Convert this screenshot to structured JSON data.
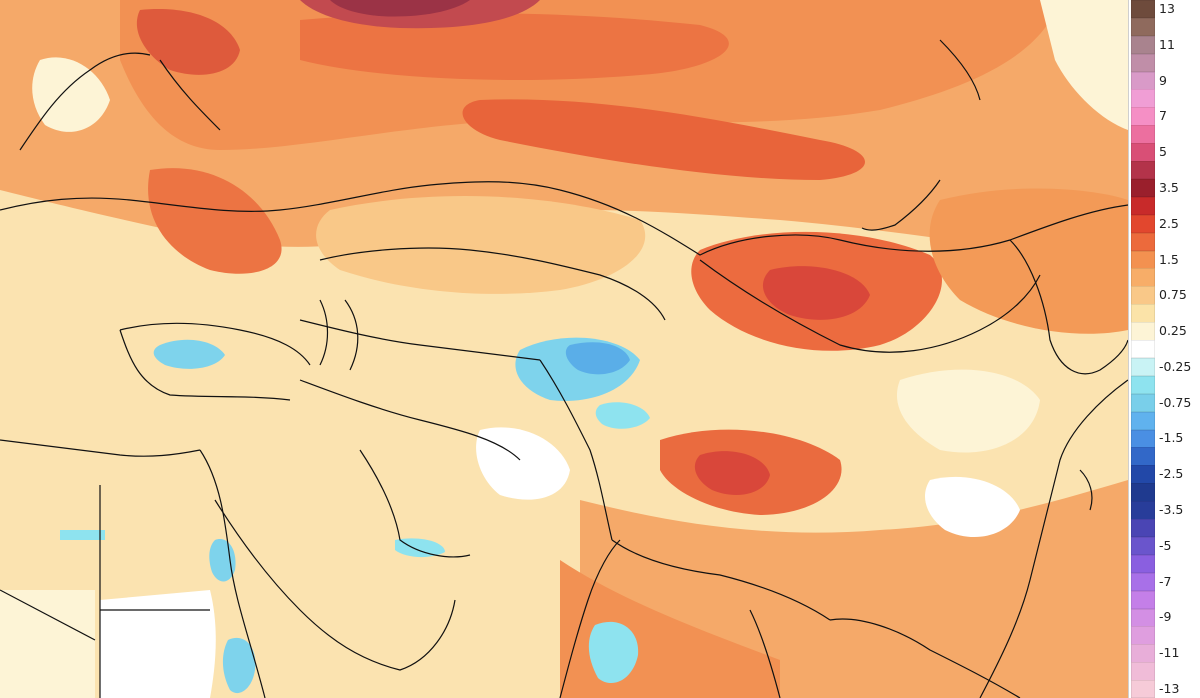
{
  "legend": {
    "entries": [
      {
        "label": "13",
        "color": "#6e4b3c"
      },
      {
        "label": "",
        "color": "#8f6a5d"
      },
      {
        "label": "11",
        "color": "#a9838e"
      },
      {
        "label": "",
        "color": "#c08ea8"
      },
      {
        "label": "9",
        "color": "#d99ac8"
      },
      {
        "label": "",
        "color": "#f09ed5"
      },
      {
        "label": "7",
        "color": "#f58fc5"
      },
      {
        "label": "",
        "color": "#ec6f9f"
      },
      {
        "label": "5",
        "color": "#d94f76"
      },
      {
        "label": "",
        "color": "#b3334a"
      },
      {
        "label": "3.5",
        "color": "#9a1f2c"
      },
      {
        "label": "",
        "color": "#c82a2a"
      },
      {
        "label": "2.5",
        "color": "#e2472e"
      },
      {
        "label": "",
        "color": "#ec6a3c"
      },
      {
        "label": "1.5",
        "color": "#f39150"
      },
      {
        "label": "",
        "color": "#f7ad68"
      },
      {
        "label": "0.75",
        "color": "#f9c888"
      },
      {
        "label": "",
        "color": "#fbe3a8"
      },
      {
        "label": "0.25",
        "color": "#fdf4d6"
      },
      {
        "label": "",
        "color": "#ffffff"
      },
      {
        "label": "-0.25",
        "color": "#c9f3f5"
      },
      {
        "label": "",
        "color": "#8ee3ef"
      },
      {
        "label": "-0.75",
        "color": "#79cfea"
      },
      {
        "label": "",
        "color": "#60b2ee"
      },
      {
        "label": "-1.5",
        "color": "#4a8fe3"
      },
      {
        "label": "",
        "color": "#3268c8"
      },
      {
        "label": "-2.5",
        "color": "#2248a8"
      },
      {
        "label": "",
        "color": "#1f3a8f"
      },
      {
        "label": "-3.5",
        "color": "#283d9a"
      },
      {
        "label": "",
        "color": "#4a45b4"
      },
      {
        "label": "-5",
        "color": "#6a55cc"
      },
      {
        "label": "",
        "color": "#8a5fe0"
      },
      {
        "label": "-7",
        "color": "#a870e8"
      },
      {
        "label": "",
        "color": "#c47fe8"
      },
      {
        "label": "-9",
        "color": "#d38fe4"
      },
      {
        "label": "",
        "color": "#df9edf"
      },
      {
        "label": "-11",
        "color": "#e8aed9"
      },
      {
        "label": "",
        "color": "#f0bcd8"
      },
      {
        "label": "-13",
        "color": "#f6cbd8"
      }
    ]
  },
  "map": {
    "colors": {
      "warm_light": "#fbe3b0",
      "warm_mid": "#f7b574",
      "warm_orange": "#f29b5a",
      "warm_strong": "#ea6b3f",
      "warm_red": "#d9473a",
      "maroon": "#9b3346",
      "cool_light": "#c6f0f5",
      "cool_mid": "#7ed3ec",
      "cool_blue": "#5aaee8",
      "neutral": "#ffffff",
      "border": "#111111"
    }
  }
}
